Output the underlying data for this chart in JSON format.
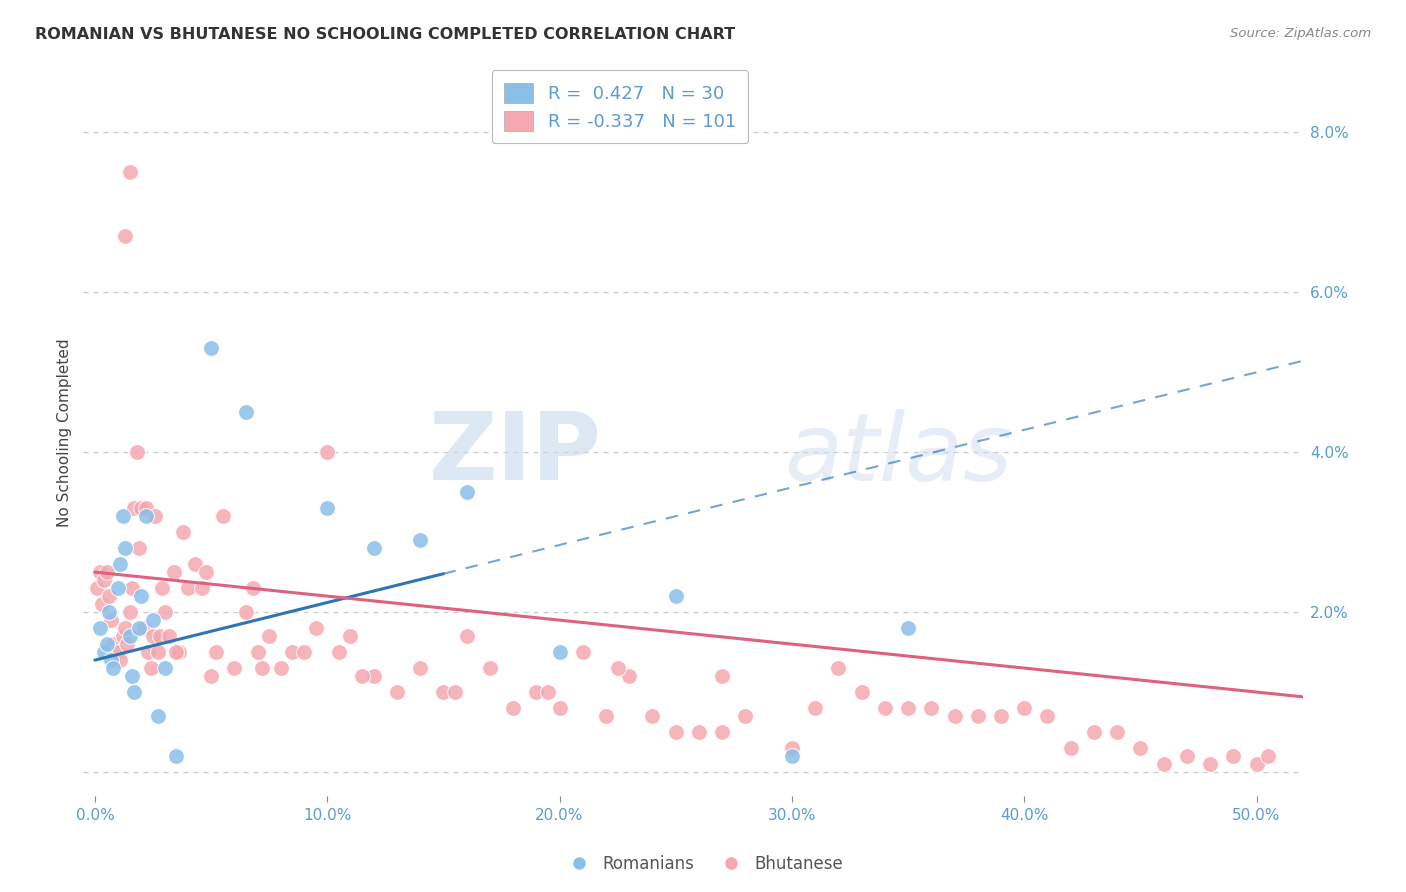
{
  "title": "ROMANIAN VS BHUTANESE NO SCHOOLING COMPLETED CORRELATION CHART",
  "source": "Source: ZipAtlas.com",
  "ylabel": "No Schooling Completed",
  "x_tick_labels": [
    "0.0%",
    "10.0%",
    "20.0%",
    "30.0%",
    "40.0%",
    "50.0%"
  ],
  "x_ticks": [
    0.0,
    10.0,
    20.0,
    30.0,
    40.0,
    50.0
  ],
  "y_ticks_right": [
    0.0,
    2.0,
    4.0,
    6.0,
    8.0
  ],
  "y_tick_labels_right": [
    "",
    "2.0%",
    "4.0%",
    "6.0%",
    "8.0%"
  ],
  "xlim": [
    -0.5,
    52
  ],
  "ylim": [
    -0.3,
    8.8
  ],
  "blue_color": "#8BBFE8",
  "pink_color": "#F4A8B0",
  "blue_line_color": "#2E75B6",
  "pink_line_color": "#E06080",
  "blue_line_y0": 1.4,
  "blue_line_y50": 5.0,
  "pink_line_y0": 2.5,
  "pink_line_y50": 1.0,
  "blue_dash_x_start": 15.0,
  "legend_label_blue": "Romanians",
  "legend_label_pink": "Bhutanese",
  "legend_R_blue": "R =  0.427",
  "legend_N_blue": "N = 30",
  "legend_R_pink": "R = -0.337",
  "legend_N_pink": "N = 101",
  "watermark_zip": "ZIP",
  "watermark_atlas": "atlas",
  "grid_color": "#CCCCCC",
  "axis_color": "#5B9BD5",
  "blue_points_x": [
    0.2,
    0.4,
    0.5,
    0.6,
    0.7,
    0.8,
    1.0,
    1.1,
    1.2,
    1.3,
    1.5,
    1.6,
    1.7,
    1.9,
    2.0,
    2.2,
    2.5,
    2.7,
    3.0,
    3.5,
    5.0,
    6.5,
    10.0,
    12.0,
    14.0,
    16.0,
    20.0,
    25.0,
    30.0,
    35.0
  ],
  "blue_points_y": [
    1.8,
    1.5,
    1.6,
    2.0,
    1.4,
    1.3,
    2.3,
    2.6,
    3.2,
    2.8,
    1.7,
    1.2,
    1.0,
    1.8,
    2.2,
    3.2,
    1.9,
    0.7,
    1.3,
    0.2,
    5.3,
    4.5,
    3.3,
    2.8,
    2.9,
    3.5,
    1.5,
    2.2,
    0.2,
    1.8
  ],
  "pink_points_x": [
    0.1,
    0.2,
    0.3,
    0.4,
    0.5,
    0.6,
    0.7,
    0.8,
    0.9,
    1.0,
    1.1,
    1.2,
    1.3,
    1.4,
    1.5,
    1.6,
    1.7,
    1.8,
    1.9,
    2.0,
    2.1,
    2.2,
    2.3,
    2.4,
    2.5,
    2.6,
    2.7,
    2.8,
    2.9,
    3.0,
    3.2,
    3.4,
    3.6,
    3.8,
    4.0,
    4.3,
    4.6,
    5.0,
    5.5,
    6.0,
    6.5,
    7.0,
    7.5,
    8.0,
    8.5,
    9.0,
    9.5,
    10.0,
    11.0,
    12.0,
    13.0,
    14.0,
    15.0,
    16.0,
    17.0,
    18.0,
    19.0,
    20.0,
    21.0,
    22.0,
    23.0,
    24.0,
    25.0,
    26.0,
    27.0,
    28.0,
    30.0,
    32.0,
    33.0,
    35.0,
    36.0,
    37.0,
    38.0,
    39.0,
    40.0,
    42.0,
    43.0,
    44.0,
    45.0,
    46.0,
    47.0,
    48.0,
    49.0,
    50.0,
    3.5,
    4.8,
    5.2,
    6.8,
    7.2,
    10.5,
    11.5,
    15.5,
    19.5,
    22.5,
    27.0,
    31.0,
    34.0,
    41.0,
    50.5,
    1.5,
    1.3
  ],
  "pink_points_y": [
    2.3,
    2.5,
    2.1,
    2.4,
    2.5,
    2.2,
    1.9,
    1.6,
    1.5,
    1.5,
    1.4,
    1.7,
    1.8,
    1.6,
    2.0,
    2.3,
    3.3,
    4.0,
    2.8,
    3.3,
    1.8,
    3.3,
    1.5,
    1.3,
    1.7,
    3.2,
    1.5,
    1.7,
    2.3,
    2.0,
    1.7,
    2.5,
    1.5,
    3.0,
    2.3,
    2.6,
    2.3,
    1.2,
    3.2,
    1.3,
    2.0,
    1.5,
    1.7,
    1.3,
    1.5,
    1.5,
    1.8,
    4.0,
    1.7,
    1.2,
    1.0,
    1.3,
    1.0,
    1.7,
    1.3,
    0.8,
    1.0,
    0.8,
    1.5,
    0.7,
    1.2,
    0.7,
    0.5,
    0.5,
    0.5,
    0.7,
    0.3,
    1.3,
    1.0,
    0.8,
    0.8,
    0.7,
    0.7,
    0.7,
    0.8,
    0.3,
    0.5,
    0.5,
    0.3,
    0.1,
    0.2,
    0.1,
    0.2,
    0.1,
    1.5,
    2.5,
    1.5,
    2.3,
    1.3,
    1.5,
    1.2,
    1.0,
    1.0,
    1.3,
    1.2,
    0.8,
    0.8,
    0.7,
    0.2,
    7.5,
    6.7
  ],
  "figsize": [
    14.06,
    8.92
  ],
  "dpi": 100
}
